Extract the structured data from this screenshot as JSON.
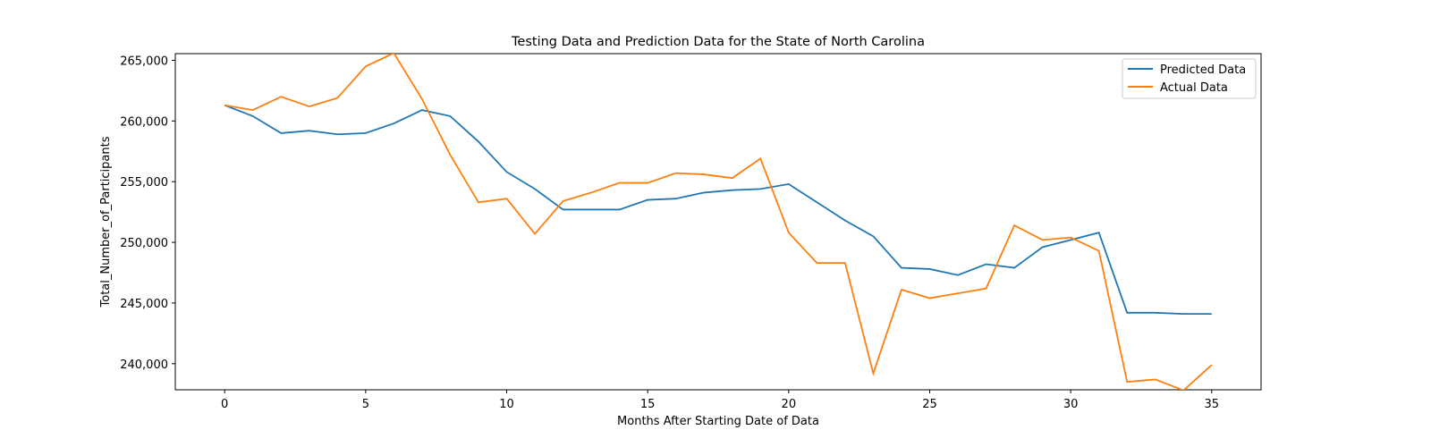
{
  "chart_data": {
    "type": "line",
    "title": "Testing Data and Prediction Data for the State of North Carolina",
    "xlabel": "Months After Starting Date of Data",
    "ylabel": "Total_Number_of_Participants",
    "xlim": [
      -1.75,
      36.75
    ],
    "ylim": [
      237850,
      265550
    ],
    "xticks": [
      0,
      5,
      10,
      15,
      20,
      25,
      30,
      35
    ],
    "xtick_labels": [
      "0",
      "5",
      "10",
      "15",
      "20",
      "25",
      "30",
      "35"
    ],
    "yticks": [
      240000,
      245000,
      250000,
      255000,
      260000,
      265000
    ],
    "ytick_labels": [
      "240,000",
      "245,000",
      "250,000",
      "255,000",
      "260,000",
      "265,000"
    ],
    "grid": false,
    "legend_position": "upper right",
    "x": [
      0,
      1,
      2,
      3,
      4,
      5,
      6,
      7,
      8,
      9,
      10,
      11,
      12,
      13,
      14,
      15,
      16,
      17,
      18,
      19,
      20,
      21,
      22,
      23,
      24,
      25,
      26,
      27,
      28,
      29,
      30,
      31,
      32,
      33,
      34,
      35
    ],
    "series": [
      {
        "name": "Predicted Data",
        "color": "#1f77b4",
        "values": [
          261300,
          260400,
          259000,
          259200,
          258900,
          259000,
          259800,
          260900,
          260400,
          258300,
          255800,
          254400,
          252700,
          252700,
          252700,
          253500,
          253600,
          254100,
          254300,
          254400,
          254800,
          253300,
          251800,
          250500,
          247900,
          247800,
          247300,
          248200,
          247900,
          249600,
          250200,
          250800,
          244200,
          244200,
          244100,
          244100
        ]
      },
      {
        "name": "Actual Data",
        "color": "#ff7f0e",
        "values": [
          261300,
          260900,
          262000,
          261200,
          261900,
          264500,
          265600,
          261800,
          257200,
          253300,
          253600,
          250700,
          253400,
          254100,
          254900,
          254900,
          255700,
          255600,
          255300,
          256900,
          250800,
          248300,
          248300,
          239200,
          246100,
          245400,
          245800,
          246200,
          251400,
          250200,
          250400,
          249300,
          238500,
          238700,
          237800,
          239900
        ]
      }
    ]
  }
}
